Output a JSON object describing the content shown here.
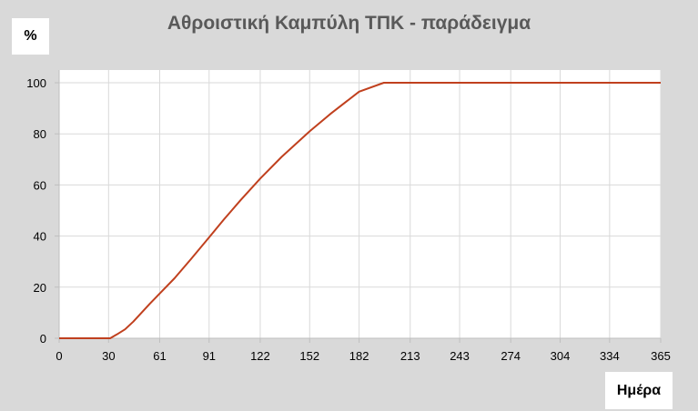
{
  "chart_data": {
    "type": "line",
    "title": "Αθροιστική Καμπύλη ΤΠΚ - παράδειγμα",
    "ylabel": "%",
    "xlabel": "Ημέρα",
    "xlim": [
      0,
      365
    ],
    "ylim": [
      0,
      100
    ],
    "x_ticks": [
      "0",
      "30",
      "61",
      "91",
      "122",
      "152",
      "182",
      "213",
      "243",
      "274",
      "304",
      "334",
      "365"
    ],
    "x_tick_values": [
      0,
      30,
      61,
      91,
      122,
      152,
      182,
      213,
      243,
      274,
      304,
      334,
      365
    ],
    "y_ticks": [
      "0",
      "20",
      "40",
      "60",
      "80",
      "100"
    ],
    "y_tick_values": [
      0,
      20,
      40,
      60,
      80,
      100
    ],
    "grid": true,
    "series": [
      {
        "color": "#c0401e",
        "x": [
          0,
          31,
          35,
          40,
          45,
          50,
          55,
          61,
          70,
          80,
          91,
          100,
          110,
          122,
          135,
          152,
          165,
          182,
          197,
          205,
          365
        ],
        "y": [
          0,
          0,
          1.5,
          3.5,
          6.5,
          10,
          13.5,
          17.5,
          23.5,
          31,
          39.5,
          46.5,
          54,
          62.5,
          71,
          81,
          88,
          96.5,
          100,
          100,
          100
        ]
      }
    ]
  }
}
